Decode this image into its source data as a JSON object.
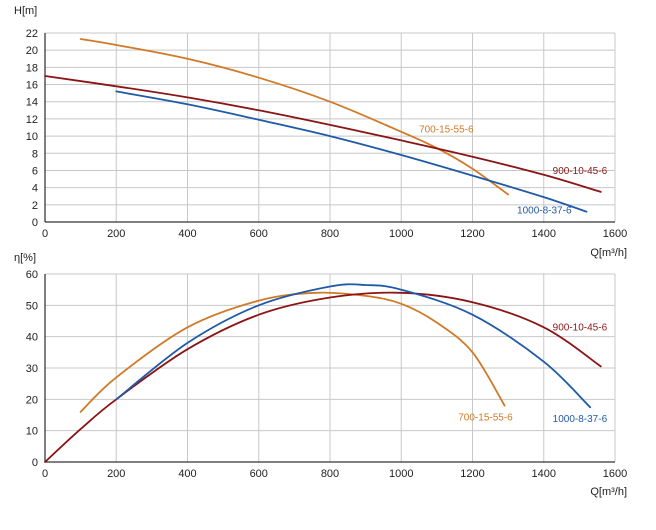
{
  "chart_data": [
    {
      "type": "line",
      "id": "head",
      "title": "",
      "ylabel": "H[m]",
      "xlabel": "Q[m³/h]",
      "xlim": [
        0,
        1600
      ],
      "ylim": [
        0,
        22
      ],
      "x_ticks": [
        0,
        200,
        400,
        600,
        800,
        1000,
        1200,
        1400,
        1600
      ],
      "y_ticks": [
        0,
        2,
        4,
        6,
        8,
        10,
        12,
        14,
        16,
        18,
        20,
        22
      ],
      "grid": true,
      "series": [
        {
          "name": "700-15-55-6",
          "color": "#d07a28",
          "label_at": [
            1050,
            10.4
          ],
          "points": [
            [
              100,
              21.3
            ],
            [
              200,
              20.6
            ],
            [
              400,
              19.0
            ],
            [
              600,
              16.8
            ],
            [
              800,
              14.0
            ],
            [
              1000,
              10.5
            ],
            [
              1100,
              8.6
            ],
            [
              1200,
              6.2
            ],
            [
              1300,
              3.2
            ]
          ]
        },
        {
          "name": "900-10-45-6",
          "color": "#8b1414",
          "label_at": [
            1425,
            5.6
          ],
          "points": [
            [
              0,
              17.0
            ],
            [
              200,
              15.8
            ],
            [
              400,
              14.5
            ],
            [
              600,
              13.0
            ],
            [
              800,
              11.3
            ],
            [
              1000,
              9.5
            ],
            [
              1200,
              7.6
            ],
            [
              1400,
              5.5
            ],
            [
              1560,
              3.5
            ]
          ]
        },
        {
          "name": "1000-8-37-6",
          "color": "#1f5aa8",
          "label_at": [
            1325,
            1.0
          ],
          "points": [
            [
              200,
              15.2
            ],
            [
              400,
              13.7
            ],
            [
              600,
              11.9
            ],
            [
              800,
              10.0
            ],
            [
              1000,
              7.8
            ],
            [
              1200,
              5.4
            ],
            [
              1400,
              2.9
            ],
            [
              1520,
              1.2
            ]
          ]
        }
      ]
    },
    {
      "type": "line",
      "id": "efficiency",
      "title": "",
      "ylabel": "η[%]",
      "xlabel": "Q[m³/h]",
      "xlim": [
        0,
        1600
      ],
      "ylim": [
        0,
        60
      ],
      "x_ticks": [
        0,
        200,
        400,
        600,
        800,
        1000,
        1200,
        1400,
        1600
      ],
      "y_ticks": [
        0,
        10,
        20,
        30,
        40,
        50,
        60
      ],
      "grid": true,
      "series": [
        {
          "name": "700-15-55-6",
          "color": "#d07a28",
          "label_at": [
            1160,
            13.2
          ],
          "points": [
            [
              100,
              16.0
            ],
            [
              200,
              27.0
            ],
            [
              400,
              43.0
            ],
            [
              600,
              51.5
            ],
            [
              760,
              54.0
            ],
            [
              900,
              53.0
            ],
            [
              1000,
              50.5
            ],
            [
              1100,
              44.5
            ],
            [
              1200,
              35.0
            ],
            [
              1290,
              18.0
            ]
          ]
        },
        {
          "name": "900-10-45-6",
          "color": "#8b1414",
          "label_at": [
            1425,
            42.0
          ],
          "points": [
            [
              0,
              0.0
            ],
            [
              100,
              10.5
            ],
            [
              200,
              20.0
            ],
            [
              400,
              36.0
            ],
            [
              600,
              47.0
            ],
            [
              800,
              52.5
            ],
            [
              1000,
              54.0
            ],
            [
              1200,
              51.0
            ],
            [
              1400,
              43.0
            ],
            [
              1560,
              30.5
            ]
          ]
        },
        {
          "name": "1000-8-37-6",
          "color": "#1f5aa8",
          "label_at": [
            1425,
            12.8
          ],
          "points": [
            [
              200,
              20.0
            ],
            [
              400,
              38.0
            ],
            [
              600,
              50.0
            ],
            [
              800,
              56.0
            ],
            [
              900,
              56.5
            ],
            [
              1000,
              55.0
            ],
            [
              1200,
              47.0
            ],
            [
              1400,
              32.0
            ],
            [
              1530,
              17.5
            ]
          ]
        }
      ]
    }
  ]
}
